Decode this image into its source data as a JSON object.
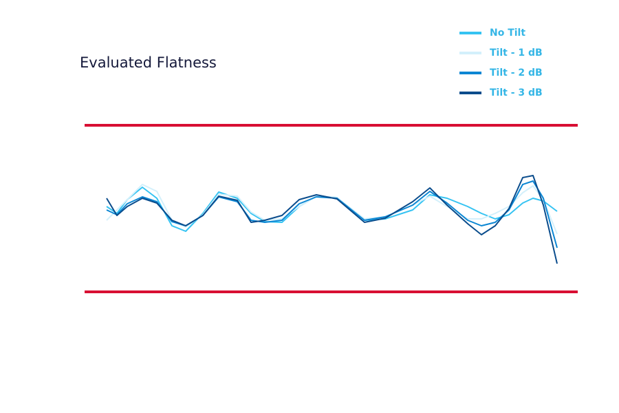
{
  "chart_data": {
    "type": "line",
    "title": "Evaluated Flatness",
    "x": [
      32,
      47,
      62,
      84,
      105,
      127,
      147,
      172,
      195,
      222,
      242,
      262,
      287,
      312,
      337,
      367,
      407,
      437,
      477,
      502,
      527,
      557,
      577,
      597,
      617,
      637,
      652,
      667,
      687
    ],
    "xlim": [
      0,
      717
    ],
    "ylim": [
      -121,
      121
    ],
    "limit_lines": {
      "values": [
        121,
        -121
      ],
      "color": "#d80f33"
    },
    "legend": "top-right",
    "series": [
      {
        "name": "No Tilt",
        "color": "#35c3f2",
        "values": [
          3,
          -7,
          13,
          31,
          15,
          -25,
          -33,
          -7,
          24,
          15,
          -7,
          -19,
          -20,
          3,
          18,
          16,
          -17,
          -15,
          -2,
          20,
          15,
          3,
          -7,
          -15,
          -9,
          8,
          15,
          11,
          -4
        ]
      },
      {
        "name": "Tilt - 1 dB",
        "color": "#d3f0fb",
        "values": [
          -17,
          -2,
          13,
          35,
          25,
          -17,
          -27,
          -9,
          21,
          18,
          -5,
          -17,
          -15,
          3,
          18,
          16,
          -15,
          -12,
          5,
          18,
          3,
          -15,
          -15,
          -7,
          3,
          23,
          33,
          13,
          -37
        ]
      },
      {
        "name": "Tilt - 2 dB",
        "color": "#0b86d3",
        "values": [
          -2,
          -9,
          7,
          17,
          10,
          -19,
          -25,
          -10,
          17,
          10,
          -17,
          -20,
          -17,
          7,
          17,
          15,
          -17,
          -12,
          5,
          25,
          8,
          -17,
          -25,
          -20,
          -2,
          35,
          40,
          15,
          -57
        ]
      },
      {
        "name": "Tilt - 3 dB",
        "color": "#0a4c8c",
        "values": [
          15,
          -10,
          3,
          15,
          8,
          -17,
          -25,
          -10,
          18,
          12,
          -20,
          -17,
          -10,
          13,
          20,
          14,
          -20,
          -14,
          10,
          30,
          5,
          -22,
          -38,
          -25,
          0,
          45,
          48,
          5,
          -80
        ]
      }
    ]
  }
}
